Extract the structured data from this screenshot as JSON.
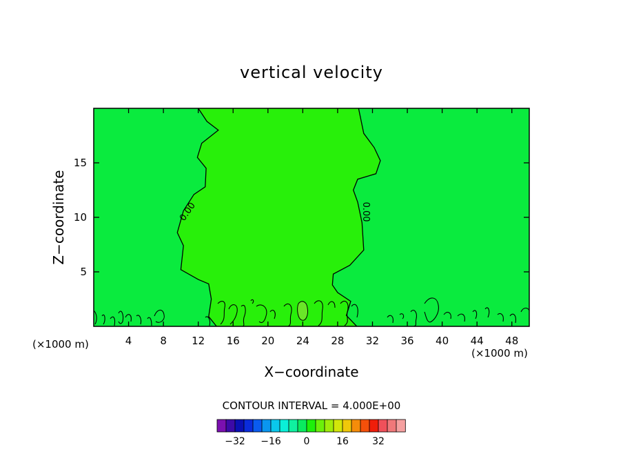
{
  "chart_data": {
    "type": "contour",
    "title": "vertical velocity",
    "xlabel": "X−coordinate",
    "ylabel": "Z−coordinate",
    "xlim": [
      0,
      50
    ],
    "ylim": [
      0,
      20
    ],
    "x_ticks": [
      {
        "value": 4,
        "label": "4"
      },
      {
        "value": 8,
        "label": "8"
      },
      {
        "value": 12,
        "label": "12"
      },
      {
        "value": 16,
        "label": "16"
      },
      {
        "value": 20,
        "label": "20"
      },
      {
        "value": 24,
        "label": "24"
      },
      {
        "value": 28,
        "label": "28"
      },
      {
        "value": 32,
        "label": "32"
      },
      {
        "value": 36,
        "label": "36"
      },
      {
        "value": 40,
        "label": "40"
      },
      {
        "value": 44,
        "label": "44"
      },
      {
        "value": 48,
        "label": "48"
      }
    ],
    "y_ticks": [
      {
        "value": 5,
        "label": "5"
      },
      {
        "value": 10,
        "label": "10"
      },
      {
        "value": 15,
        "label": "15"
      }
    ],
    "x_unit_left": "(×1000 m)",
    "x_unit_right": "(×1000 m)",
    "contour_labels": [
      {
        "text": "0.00",
        "x": 10.8,
        "y": 10.5,
        "angle": -55
      },
      {
        "text": "0.00",
        "x": 31.2,
        "y": 10.5,
        "angle": 90
      }
    ],
    "contour_interval_text": "CONTOUR INTERVAL = 4.000E+00",
    "zero_contour_left": [
      [
        12.0,
        20.0
      ],
      [
        13.0,
        18.8
      ],
      [
        14.3,
        18.0
      ],
      [
        12.4,
        16.8
      ],
      [
        11.9,
        15.5
      ],
      [
        12.9,
        14.5
      ],
      [
        12.8,
        12.8
      ],
      [
        11.5,
        12.1
      ],
      [
        10.3,
        10.6
      ],
      [
        9.6,
        8.6
      ],
      [
        10.3,
        7.4
      ],
      [
        10.0,
        5.2
      ],
      [
        12.0,
        4.3
      ],
      [
        13.2,
        3.9
      ],
      [
        13.5,
        2.5
      ],
      [
        13.2,
        0.9
      ],
      [
        14.1,
        0.0
      ]
    ],
    "zero_contour_right": [
      [
        30.4,
        20.0
      ],
      [
        31.0,
        17.7
      ],
      [
        32.2,
        16.4
      ],
      [
        32.9,
        15.2
      ],
      [
        32.4,
        14.0
      ],
      [
        30.3,
        13.5
      ],
      [
        29.8,
        12.5
      ],
      [
        30.3,
        11.4
      ],
      [
        30.8,
        9.5
      ],
      [
        31.0,
        7.0
      ],
      [
        29.4,
        5.6
      ],
      [
        27.5,
        4.8
      ],
      [
        27.4,
        3.8
      ],
      [
        28.0,
        3.1
      ],
      [
        29.5,
        2.3
      ],
      [
        29.0,
        1.0
      ],
      [
        30.2,
        0.0
      ]
    ],
    "colorbar": {
      "colors": [
        "#7b10b0",
        "#3c0aa8",
        "#0a10b4",
        "#0a2cdc",
        "#0a5cf0",
        "#0a96f0",
        "#0ac8ec",
        "#0af0d8",
        "#10f0a0",
        "#0aeb60",
        "#1ef00a",
        "#6cf00a",
        "#a0ec0a",
        "#d2e60a",
        "#f0c80a",
        "#f58c0a",
        "#f5500a",
        "#f01e0a",
        "#f0505a",
        "#f0787a",
        "#f5a0a0"
      ],
      "tick_labels": [
        {
          "index": 2,
          "label": "−32"
        },
        {
          "index": 6,
          "label": "−16"
        },
        {
          "index": 10,
          "label": "0"
        },
        {
          "index": 14,
          "label": "16"
        },
        {
          "index": 18,
          "label": "32"
        }
      ]
    },
    "colors": {
      "background_field": "#0aeb3e",
      "updraft_field": "#28f00a",
      "strong_updraft": "#6ae628"
    }
  }
}
